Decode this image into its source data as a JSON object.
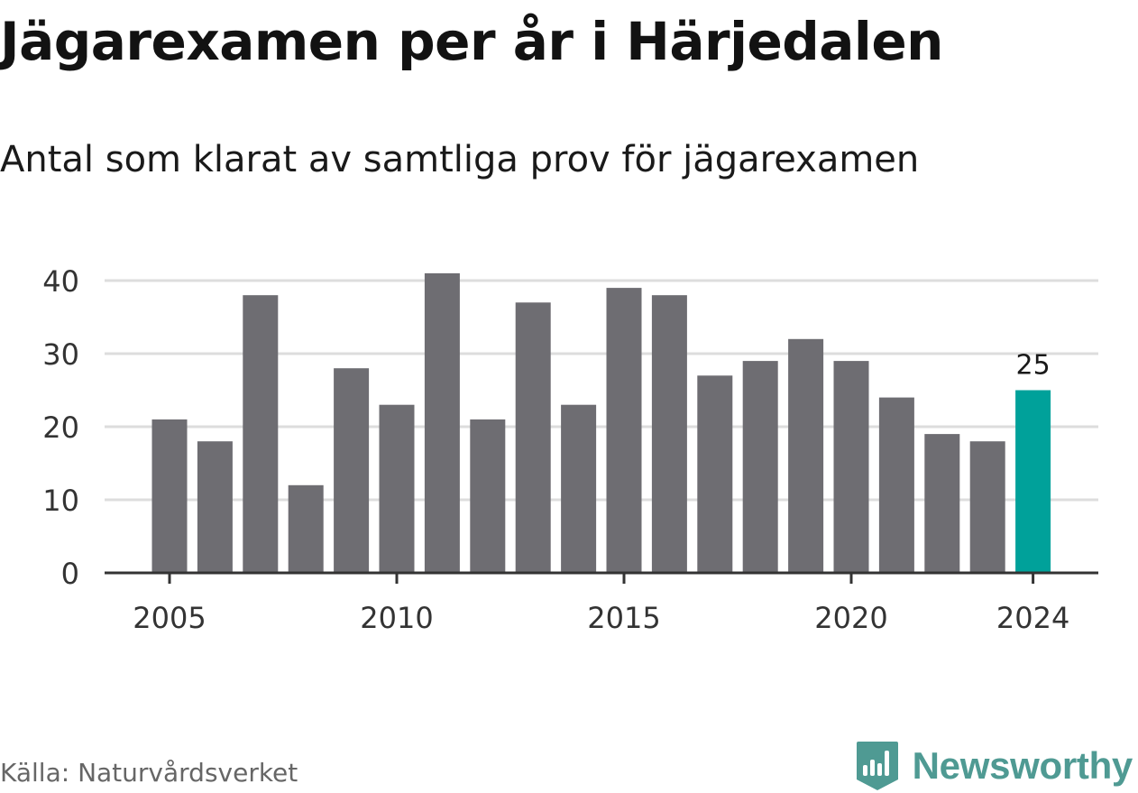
{
  "title": "Jägarexamen per år i Härjedalen",
  "subtitle": "Antal som klarat av samtliga prov för jägarexamen",
  "source": "Källa: Naturvårdsverket",
  "brand": {
    "name": "Newsworthy",
    "icon": "newsworthy-logo-icon"
  },
  "colors": {
    "bar": "#6e6d72",
    "highlight": "#00a19a",
    "grid": "#dddddd",
    "axis": "#333333",
    "brand": "#4f9a93"
  },
  "chart_data": {
    "type": "bar",
    "title": "",
    "xlabel": "",
    "ylabel": "",
    "categories": [
      "2005",
      "2006",
      "2007",
      "2008",
      "2009",
      "2010",
      "2011",
      "2012",
      "2013",
      "2014",
      "2015",
      "2016",
      "2017",
      "2018",
      "2019",
      "2020",
      "2021",
      "2022",
      "2023",
      "2024"
    ],
    "values": [
      21,
      18,
      38,
      12,
      28,
      23,
      41,
      21,
      37,
      23,
      39,
      38,
      27,
      29,
      32,
      29,
      24,
      19,
      18,
      25
    ],
    "highlight": "2024",
    "highlight_label": "25",
    "ylim": [
      0,
      40
    ],
    "yticks": [
      0,
      10,
      20,
      30,
      40
    ],
    "xtick_labels": [
      "2005",
      "2010",
      "2015",
      "2020",
      "2024"
    ],
    "grid": true,
    "legend": "none"
  }
}
